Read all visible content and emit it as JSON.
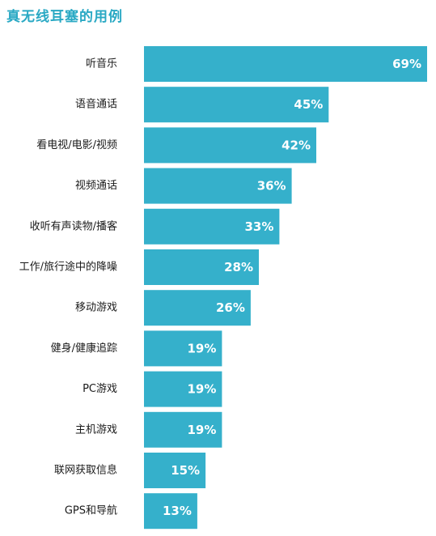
{
  "chart_data": {
    "type": "bar",
    "orientation": "horizontal",
    "title": "真无线耳塞的用例",
    "xlabel": "",
    "ylabel": "",
    "categories": [
      "听音乐",
      "语音通话",
      "看电视/电影/视频",
      "视频通话",
      "收听有声读物/播客",
      "工作/旅行途中的降噪",
      "移动游戏",
      "健身/健康追踪",
      "PC游戏",
      "主机游戏",
      "联网获取信息",
      "GPS和导航"
    ],
    "values": [
      69,
      45,
      42,
      36,
      33,
      28,
      26,
      19,
      19,
      19,
      15,
      13
    ],
    "value_labels": [
      "69%",
      "45%",
      "42%",
      "36%",
      "33%",
      "28%",
      "26%",
      "19%",
      "19%",
      "19%",
      "15%",
      "13%"
    ],
    "unit": "%",
    "xlim": [
      0,
      69
    ],
    "grid": false,
    "legend": "none",
    "bar_color": "#35b0cb",
    "title_color": "#2aa9c4",
    "label_color": "#1a1a1a",
    "value_label_color": "#ffffff"
  }
}
